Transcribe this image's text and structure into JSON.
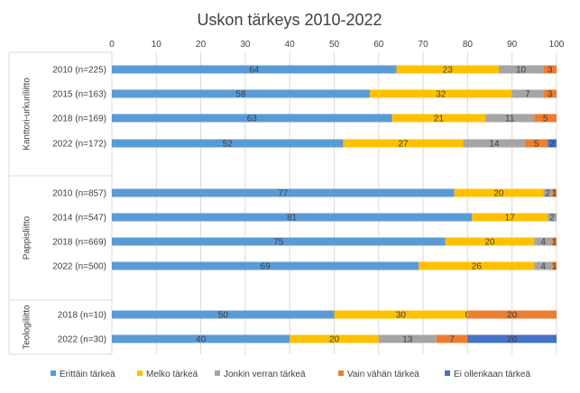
{
  "chart_data": {
    "type": "bar",
    "orientation": "horizontal",
    "stacked": true,
    "title": "Uskon tärkeys 2010-2022",
    "xlim": [
      0,
      100
    ],
    "xticks": [
      0,
      10,
      20,
      30,
      40,
      50,
      60,
      70,
      80,
      90,
      100
    ],
    "x_axis_position": "top",
    "grid": true,
    "legend_position": "bottom",
    "series": [
      {
        "name": "Erittäin tärkeä",
        "color": "#5B9BD5"
      },
      {
        "name": "Melko tärkeä",
        "color": "#FFC000"
      },
      {
        "name": "Jonkin verran tärkeä",
        "color": "#A5A5A5"
      },
      {
        "name": "Vain vähän tärkeä",
        "color": "#ED7D31"
      },
      {
        "name": "Ei ollenkaan tärkeä",
        "color": "#4472C4"
      }
    ],
    "groups": [
      {
        "name": "Kanttori-urkuriliitto",
        "rows": [
          {
            "label": "2010 (n=225)",
            "values": [
              64,
              23,
              10,
              3,
              0
            ],
            "labels": [
              "64",
              "23",
              "10",
              "3",
              ""
            ]
          },
          {
            "label": "2015 (n=163)",
            "values": [
              58,
              32,
              7,
              3,
              0
            ],
            "labels": [
              "58",
              "32",
              "7",
              "3",
              ""
            ]
          },
          {
            "label": "2018 (n=169)",
            "values": [
              63,
              21,
              11,
              5,
              0
            ],
            "labels": [
              "63",
              "21",
              "11",
              "5",
              ""
            ]
          },
          {
            "label": "2022 (n=172)",
            "values": [
              52,
              27,
              14,
              5,
              2
            ],
            "labels": [
              "52",
              "27",
              "14",
              "5",
              "2"
            ]
          }
        ]
      },
      {
        "name": "Pappisliitto",
        "rows": [
          {
            "label": "2010 (n=857)",
            "values": [
              77,
              20,
              2,
              1,
              0
            ],
            "labels": [
              "77",
              "20",
              "2",
              "1",
              ""
            ]
          },
          {
            "label": "2014 (n=547)",
            "values": [
              81,
              17,
              2,
              0,
              0
            ],
            "labels": [
              "81",
              "17",
              "2",
              "",
              ""
            ]
          },
          {
            "label": "2018 (n=669)",
            "values": [
              75,
              20,
              4,
              1,
              0
            ],
            "labels": [
              "75",
              "20",
              "4",
              "1",
              ""
            ]
          },
          {
            "label": "2022 (n=500)",
            "values": [
              69,
              26,
              4,
              1,
              0
            ],
            "labels": [
              "69",
              "26",
              "4",
              "1",
              ""
            ]
          }
        ]
      },
      {
        "name": "Teologiliitto",
        "rows": [
          {
            "label": "2018 (n=10)",
            "values": [
              50,
              30,
              0,
              20,
              0
            ],
            "labels": [
              "50",
              "30",
              "0",
              "20",
              ""
            ]
          },
          {
            "label": "2022 (n=30)",
            "values": [
              40,
              20,
              13,
              7,
              20
            ],
            "labels": [
              "40",
              "20",
              "13",
              "7",
              "20"
            ]
          }
        ]
      }
    ]
  }
}
